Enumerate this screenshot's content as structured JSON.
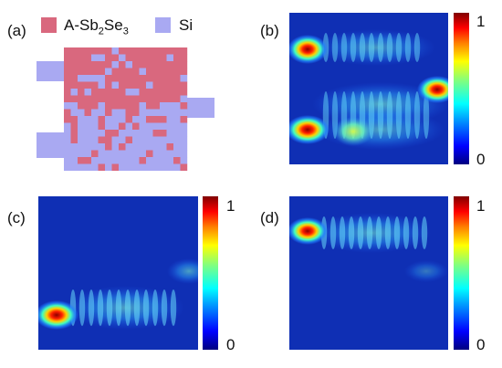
{
  "panels": {
    "a": {
      "label": "(a)"
    },
    "b": {
      "label": "(b)"
    },
    "c": {
      "label": "(c)"
    },
    "d": {
      "label": "(d)"
    }
  },
  "legend": {
    "material_1": {
      "prefix": "A-Sb",
      "sub1": "2",
      "mid": "Se",
      "sub2": "3",
      "color": "#d9687e"
    },
    "material_2": {
      "text": "Si",
      "color": "#a9a9f2"
    }
  },
  "colorbar": {
    "max_label": "1",
    "min_label": "0",
    "colors": [
      "#000080",
      "#0000ff",
      "#00a0ff",
      "#00ffff",
      "#80ff80",
      "#ffff00",
      "#ff8000",
      "#ff0000",
      "#800000"
    ]
  },
  "colors": {
    "field_background": "#0f2fb4",
    "silicon": "#a9a9f2",
    "phase_change": "#d9687e"
  }
}
